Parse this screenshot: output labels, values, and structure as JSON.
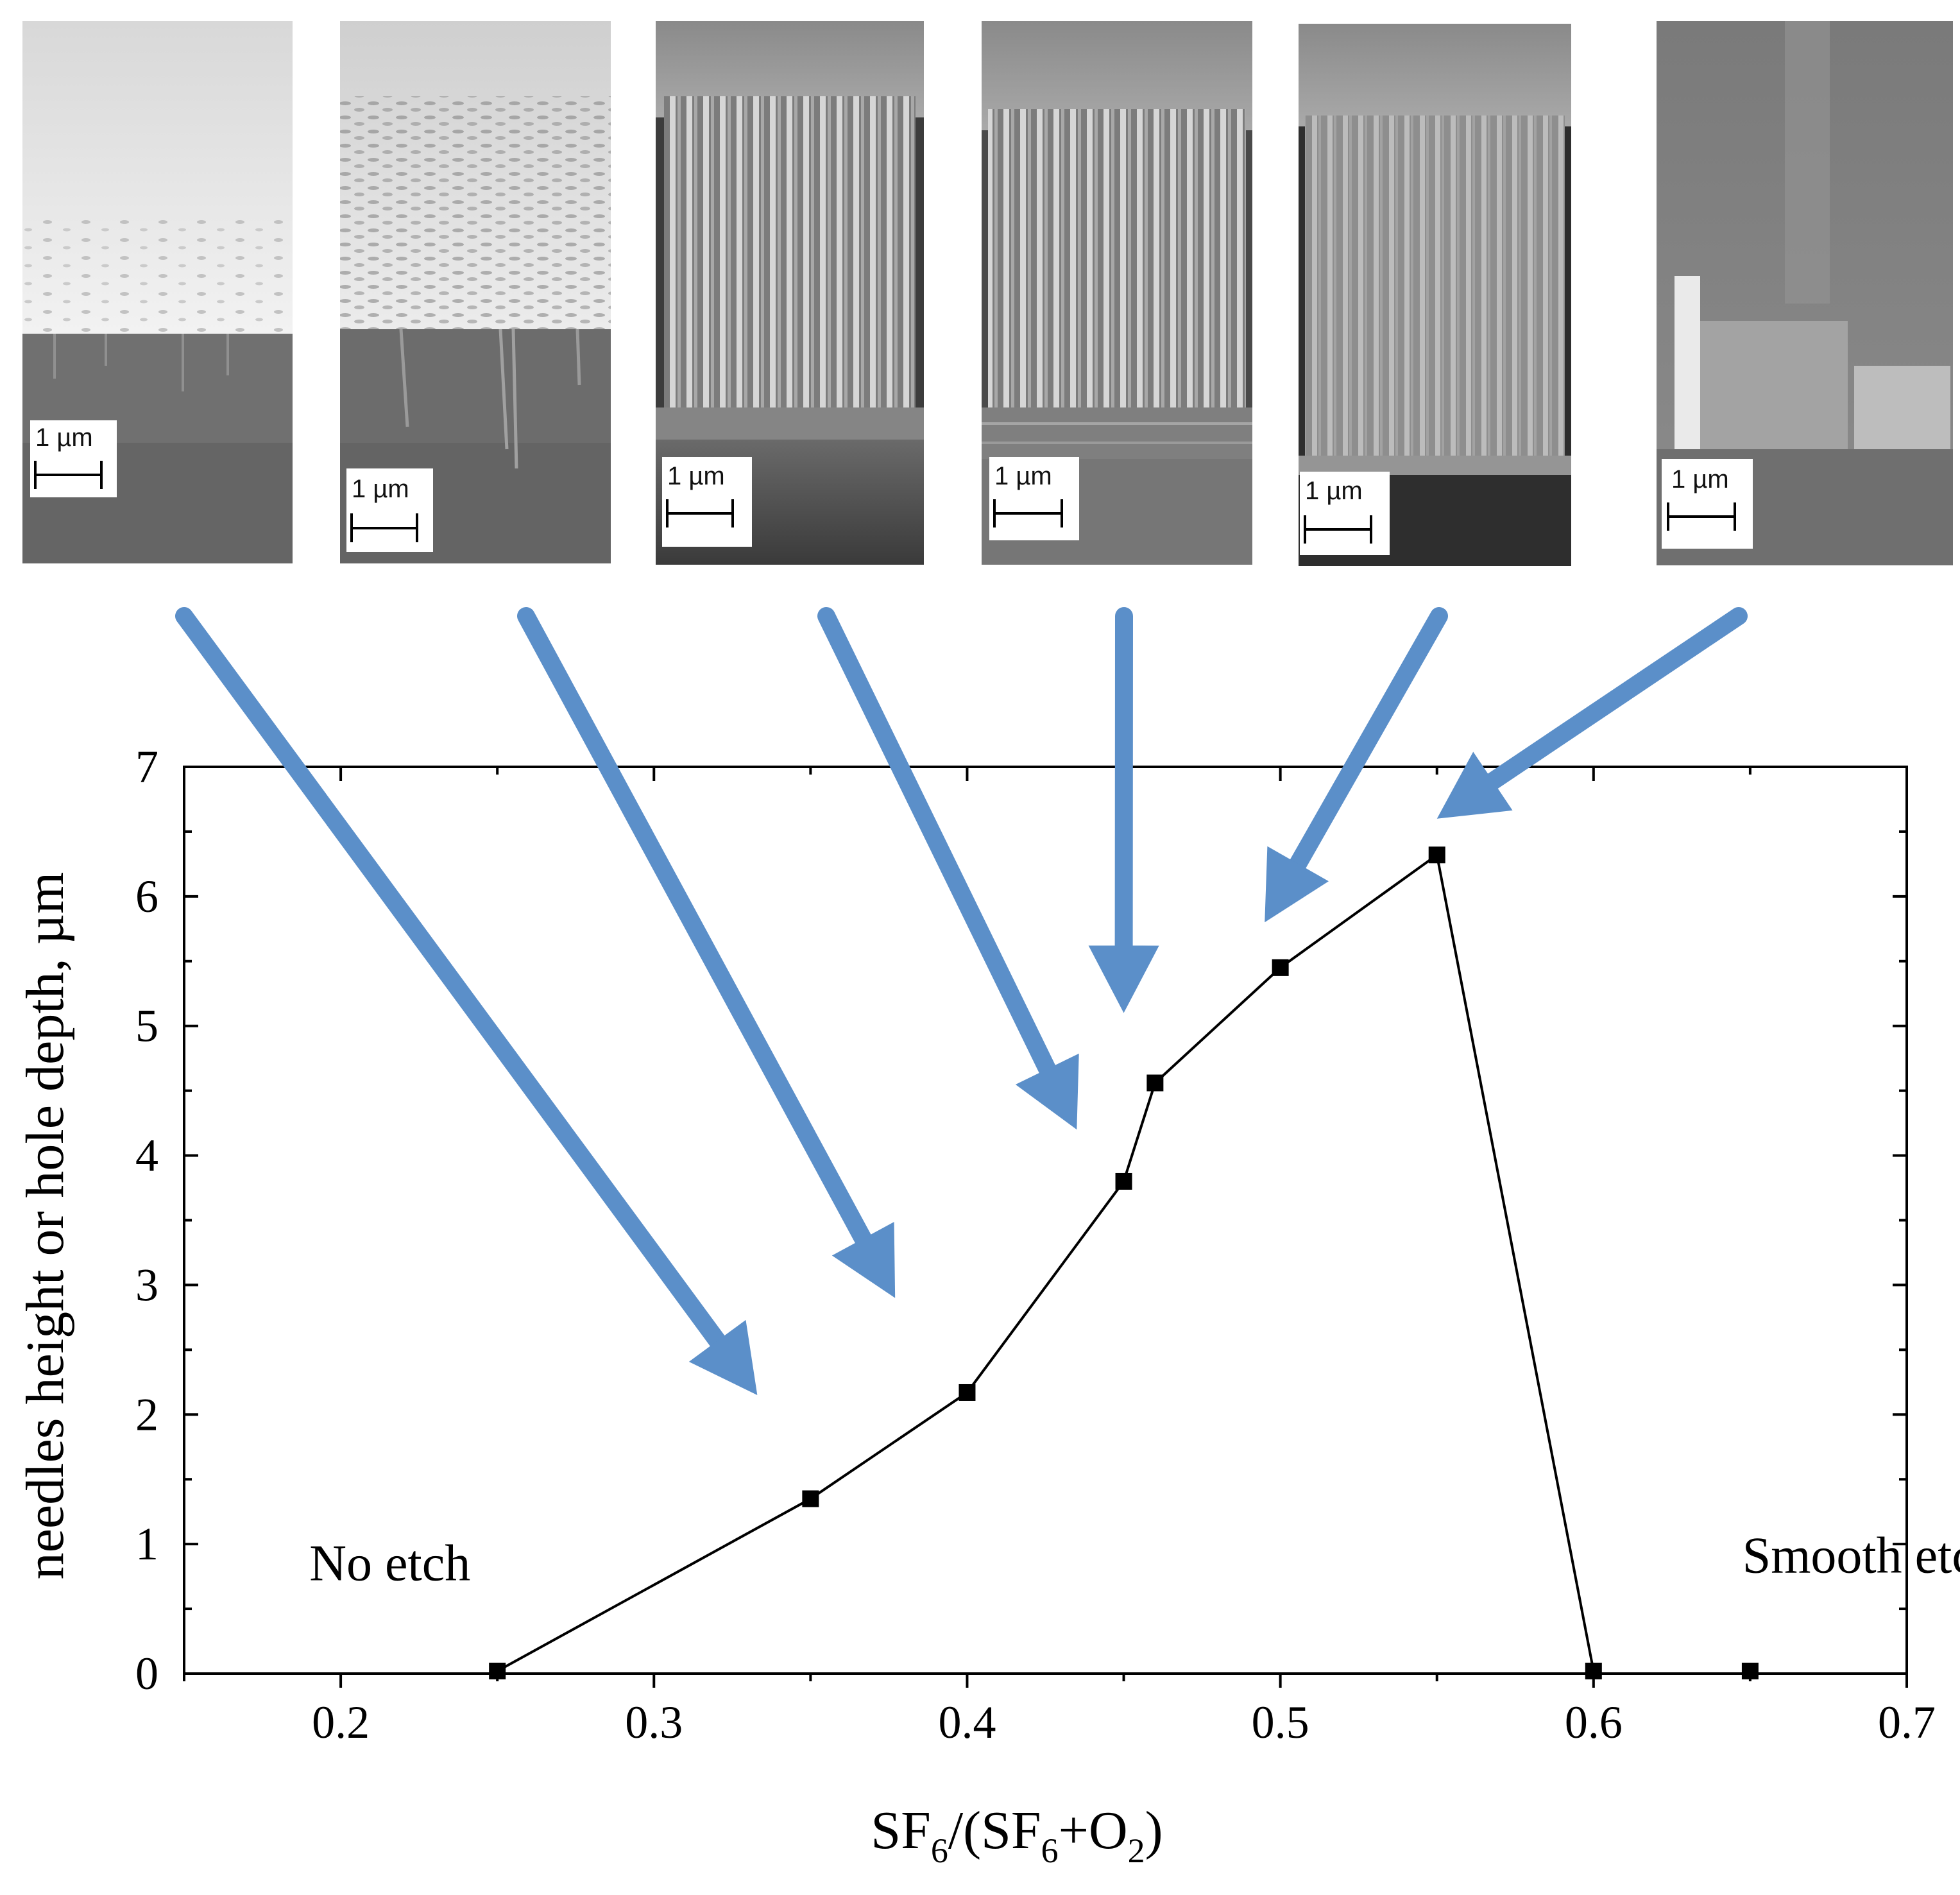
{
  "chart_data": {
    "type": "line",
    "title": "",
    "xlabel": {
      "main": "SF",
      "sub1": "6",
      "mid": "/(SF",
      "sub2": "6",
      "plus": "+O",
      "sub3": "2",
      "end": ")"
    },
    "ylabel": "needles height or hole depth, µm",
    "xlim": [
      0.15,
      0.7
    ],
    "ylim": [
      0,
      7
    ],
    "x_ticks": [
      0.2,
      0.3,
      0.4,
      0.5,
      0.6,
      0.7
    ],
    "x_tick_labels": [
      "0.2",
      "0.3",
      "0.4",
      "0.5",
      "0.6",
      "0.7"
    ],
    "y_ticks": [
      0,
      1,
      2,
      3,
      4,
      5,
      6,
      7
    ],
    "y_tick_labels": [
      "0",
      "1",
      "2",
      "3",
      "4",
      "5",
      "6",
      "7"
    ],
    "series": [
      {
        "name": "needle height / hole depth",
        "color": "#000000",
        "marker": "square",
        "x": [
          0.25,
          0.35,
          0.4,
          0.45,
          0.46,
          0.5,
          0.55,
          0.6,
          0.65
        ],
        "y": [
          0.02,
          1.35,
          2.17,
          3.8,
          4.56,
          5.45,
          6.32,
          0.02,
          0.02
        ],
        "connected_points": 8
      }
    ],
    "annotations": [
      {
        "text": "No etch",
        "x": 0.19,
        "y": 0.72
      },
      {
        "text": "Smooth etch",
        "x": 0.6475,
        "y": 0.78
      }
    ],
    "arrows": {
      "color": "#5b8fc9",
      "targets": [
        {
          "x": 0.333,
          "y": 2.15
        },
        {
          "x": 0.377,
          "y": 2.9
        },
        {
          "x": 0.435,
          "y": 4.2
        },
        {
          "x": 0.45,
          "y": 5.1
        },
        {
          "x": 0.495,
          "y": 5.8
        },
        {
          "x": 0.55,
          "y": 6.6
        }
      ]
    },
    "sem_images": [
      {
        "scale_label": "1 µm"
      },
      {
        "scale_label": "1 µm"
      },
      {
        "scale_label": "1 µm"
      },
      {
        "scale_label": "1 µm"
      },
      {
        "scale_label": "1 µm"
      },
      {
        "scale_label": "1 µm"
      }
    ]
  }
}
